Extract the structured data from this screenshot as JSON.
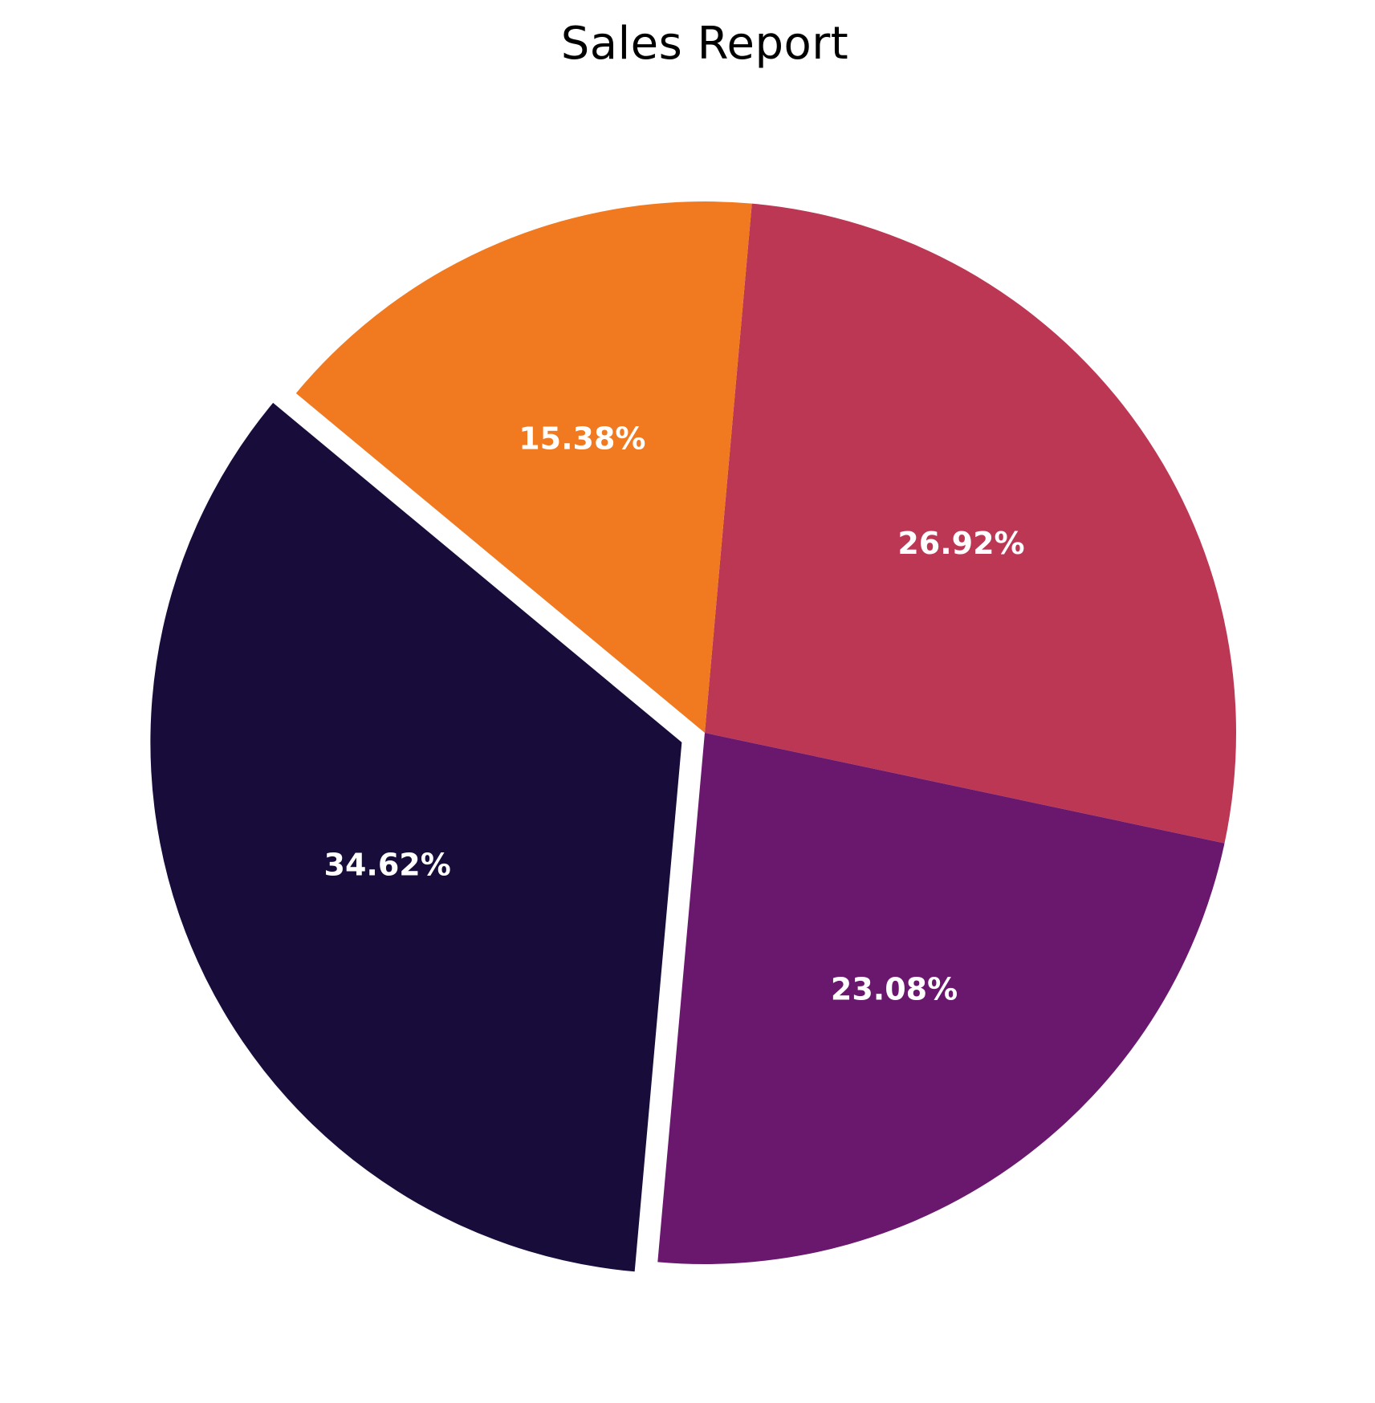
{
  "chart_data": {
    "type": "pie",
    "title": "Sales Report",
    "slices": [
      {
        "label": "26.92%",
        "value": 26.92,
        "color": "#bc3754",
        "exploded": false
      },
      {
        "label": "15.38%",
        "value": 15.38,
        "color": "#f1791f",
        "exploded": false
      },
      {
        "label": "34.62%",
        "value": 34.62,
        "color": "#180c3a",
        "exploded": true
      },
      {
        "label": "23.08%",
        "value": 23.08,
        "color": "#6a176e",
        "exploded": false
      }
    ],
    "start_angle_deg": -12,
    "direction": "counterclockwise",
    "legend": "none"
  }
}
